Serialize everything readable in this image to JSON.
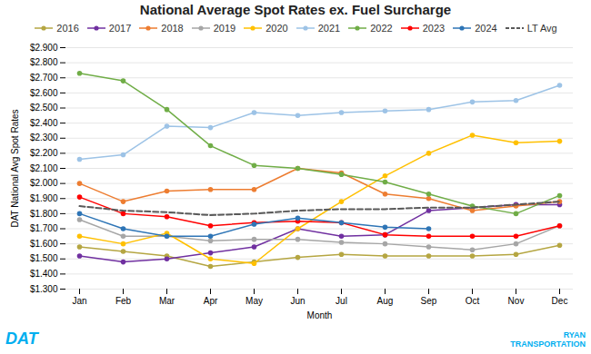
{
  "chart_data": {
    "type": "line",
    "title": "National Average Spot Rates ex. Fuel Surcharge",
    "x_label": "Month",
    "y_label": "DAT National Avg Spot Rates",
    "categories": [
      "Jan",
      "Feb",
      "Mar",
      "Apr",
      "May",
      "Jun",
      "Jul",
      "Aug",
      "Sep",
      "Oct",
      "Nov",
      "Dec"
    ],
    "series": [
      {
        "name": "2016",
        "color": "#b5a642",
        "marker": "circle",
        "line_style": "solid",
        "values": [
          1.58,
          1.55,
          1.52,
          1.45,
          1.48,
          1.51,
          1.53,
          1.52,
          1.52,
          1.52,
          1.53,
          1.59
        ]
      },
      {
        "name": "2017",
        "color": "#7030a0",
        "marker": "circle",
        "line_style": "solid",
        "values": [
          1.52,
          1.48,
          1.5,
          1.54,
          1.58,
          1.7,
          1.65,
          1.66,
          1.82,
          1.84,
          1.86,
          1.86
        ]
      },
      {
        "name": "2018",
        "color": "#ed7d31",
        "marker": "circle",
        "line_style": "solid",
        "values": [
          2.0,
          1.88,
          1.95,
          1.96,
          1.96,
          2.1,
          2.07,
          1.93,
          1.9,
          1.82,
          1.85,
          1.88
        ]
      },
      {
        "name": "2019",
        "color": "#a6a6a6",
        "marker": "circle",
        "line_style": "solid",
        "values": [
          1.76,
          1.65,
          1.65,
          1.62,
          1.63,
          1.63,
          1.61,
          1.6,
          1.58,
          1.56,
          1.6,
          1.72
        ]
      },
      {
        "name": "2020",
        "color": "#ffc000",
        "marker": "circle",
        "line_style": "solid",
        "values": [
          1.65,
          1.6,
          1.67,
          1.5,
          1.47,
          1.7,
          1.88,
          2.05,
          2.2,
          2.32,
          2.27,
          2.28
        ]
      },
      {
        "name": "2021",
        "color": "#9dc3e6",
        "marker": "circle",
        "line_style": "solid",
        "values": [
          2.16,
          2.19,
          2.38,
          2.37,
          2.47,
          2.45,
          2.47,
          2.48,
          2.49,
          2.54,
          2.55,
          2.65
        ]
      },
      {
        "name": "2022",
        "color": "#70ad47",
        "marker": "circle",
        "line_style": "solid",
        "values": [
          2.73,
          2.68,
          2.49,
          2.25,
          2.12,
          2.1,
          2.06,
          2.01,
          1.93,
          1.85,
          1.8,
          1.92
        ]
      },
      {
        "name": "2023",
        "color": "#ff0000",
        "marker": "circle",
        "line_style": "solid",
        "values": [
          1.91,
          1.8,
          1.78,
          1.72,
          1.74,
          1.75,
          1.74,
          1.66,
          1.65,
          1.65,
          1.65,
          1.72
        ]
      },
      {
        "name": "2024",
        "color": "#2e75b6",
        "marker": "circle",
        "line_style": "solid",
        "values": [
          1.8,
          1.7,
          1.65,
          1.65,
          1.73,
          1.77,
          1.74,
          1.71,
          1.7,
          null,
          null,
          null
        ]
      },
      {
        "name": "LT Avg",
        "color": "#595959",
        "line_style": "dashed",
        "values": [
          1.85,
          1.82,
          1.81,
          1.79,
          1.8,
          1.82,
          1.83,
          1.83,
          1.84,
          1.84,
          1.86,
          1.88
        ]
      }
    ],
    "ylim": [
      1.3,
      2.9
    ],
    "yticks": [
      {
        "value": 1.3,
        "label": "$1.300"
      },
      {
        "value": 1.4,
        "label": "$1.400"
      },
      {
        "value": 1.5,
        "label": "$1.500"
      },
      {
        "value": 1.6,
        "label": "$1.600"
      },
      {
        "value": 1.7,
        "label": "$1.700"
      },
      {
        "value": 1.8,
        "label": "$1.800"
      },
      {
        "value": 1.9,
        "label": "$1.900"
      },
      {
        "value": 2.0,
        "label": "$2.000"
      },
      {
        "value": 2.1,
        "label": "$2.100"
      },
      {
        "value": 2.2,
        "label": "$2.200"
      },
      {
        "value": 2.3,
        "label": "$2.300"
      },
      {
        "value": 2.4,
        "label": "$2.400"
      },
      {
        "value": 2.5,
        "label": "$2.500"
      },
      {
        "value": 2.6,
        "label": "$2.600"
      },
      {
        "value": 2.7,
        "label": "$2.700"
      },
      {
        "value": 2.8,
        "label": "$2.800"
      },
      {
        "value": 2.9,
        "label": "$2.900"
      }
    ],
    "grid": "y",
    "legend": "top",
    "annotations": [
      {
        "text": "DAT",
        "color": "#00aeef"
      },
      {
        "text": "RYAN\nTRANSPORTATION",
        "color": "#00aeef"
      }
    ]
  }
}
